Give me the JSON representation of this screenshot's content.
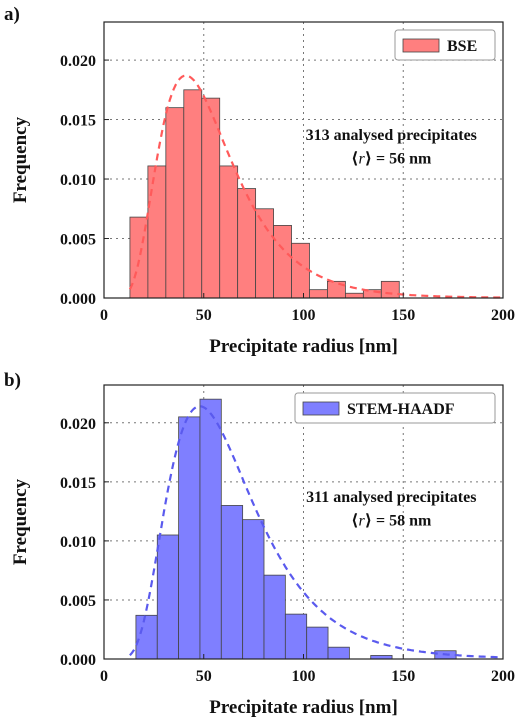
{
  "panels_label": [
    "a)",
    "b)"
  ],
  "chart_data": [
    {
      "type": "bar",
      "panel_label": "a)",
      "xlabel": "Precipitate radius [nm]",
      "ylabel": "Frequency",
      "xlim": [
        0,
        200
      ],
      "ylim": [
        0,
        0.0232
      ],
      "xticks": [
        0,
        50,
        100,
        150,
        200
      ],
      "yticks": [
        0.0,
        0.005,
        0.01,
        0.015,
        0.02
      ],
      "xtick_labels": [
        "0",
        "50",
        "100",
        "150",
        "200"
      ],
      "ytick_labels": [
        "0.000",
        "0.005",
        "0.010",
        "0.015",
        "0.020"
      ],
      "grid": true,
      "legend_position": "top-right",
      "legend": [
        "BSE"
      ],
      "annotation": [
        "313 analysed precipitates",
        "⟨r⟩ = 56 nm"
      ],
      "bin_width": 9.0,
      "series": [
        {
          "name": "BSE",
          "bin_left": [
            13,
            22,
            31,
            40,
            49,
            58,
            67,
            76,
            85,
            94,
            103,
            112,
            121,
            130,
            139
          ],
          "values": [
            0.0068,
            0.0111,
            0.016,
            0.0175,
            0.0168,
            0.0111,
            0.0092,
            0.0075,
            0.0061,
            0.0046,
            0.0007,
            0.0014,
            0.0004,
            0.0007,
            0.0014
          ],
          "color": "#ff7f7f"
        }
      ],
      "fit_curve": {
        "type": "lognormal",
        "mode_x": 41,
        "peak_y": 0.0187,
        "x_range": [
          13,
          200
        ],
        "color": "#ff5a5a"
      }
    },
    {
      "type": "bar",
      "panel_label": "b)",
      "xlabel": "Precipitate radius [nm]",
      "ylabel": "Frequency",
      "xlim": [
        0,
        200
      ],
      "ylim": [
        0,
        0.0232
      ],
      "xticks": [
        0,
        50,
        100,
        150,
        200
      ],
      "yticks": [
        0.0,
        0.005,
        0.01,
        0.015,
        0.02
      ],
      "xtick_labels": [
        "0",
        "50",
        "100",
        "150",
        "200"
      ],
      "ytick_labels": [
        "0.000",
        "0.005",
        "0.010",
        "0.015",
        "0.020"
      ],
      "grid": true,
      "legend_position": "top-right",
      "legend": [
        "STEM-HAADF"
      ],
      "annotation": [
        "311 analysed precipitates",
        "⟨r⟩ = 58 nm"
      ],
      "bin_width": 10.7,
      "series": [
        {
          "name": "STEM-HAADF",
          "bin_left": [
            16,
            26.7,
            37.4,
            48.1,
            58.8,
            69.5,
            80.2,
            90.9,
            101.6,
            112.3,
            123,
            133.7,
            144.4,
            155.1,
            165.8
          ],
          "values": [
            0.0037,
            0.0105,
            0.0205,
            0.022,
            0.013,
            0.0118,
            0.0071,
            0.0038,
            0.0027,
            0.001,
            0.0,
            0.0003,
            0.0,
            0.0,
            0.0007
          ],
          "color": "#7f7fff"
        }
      ],
      "fit_curve": {
        "type": "lognormal",
        "mode_x": 48,
        "peak_y": 0.0214,
        "x_range": [
          13,
          200
        ],
        "color": "#5a5aee"
      }
    }
  ]
}
